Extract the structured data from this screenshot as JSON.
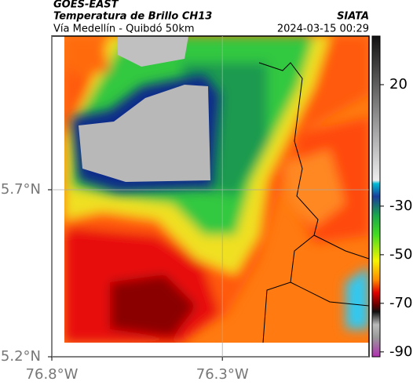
{
  "header": {
    "source": "GOES-EAST",
    "title": "Temperatura de Brillo CH13",
    "subtitle": "Vía Medellín - Quibdó 50km",
    "agency": "SIATA",
    "timestamp": "2024-03-15 00:29"
  },
  "map": {
    "xlim": [
      -76.8,
      -75.87
    ],
    "ylim": [
      5.2,
      6.16
    ],
    "xticks": [
      {
        "value": -76.8,
        "label": "76.8°W"
      },
      {
        "value": -76.3,
        "label": "76.3°W"
      }
    ],
    "yticks": [
      {
        "value": 5.2,
        "label": "5.2°N"
      },
      {
        "value": 5.7,
        "label": "5.7°N"
      }
    ]
  },
  "colorbar": {
    "lim": [
      -92,
      40
    ],
    "ticks": [
      20,
      -30,
      -50,
      -70,
      -90
    ]
  }
}
